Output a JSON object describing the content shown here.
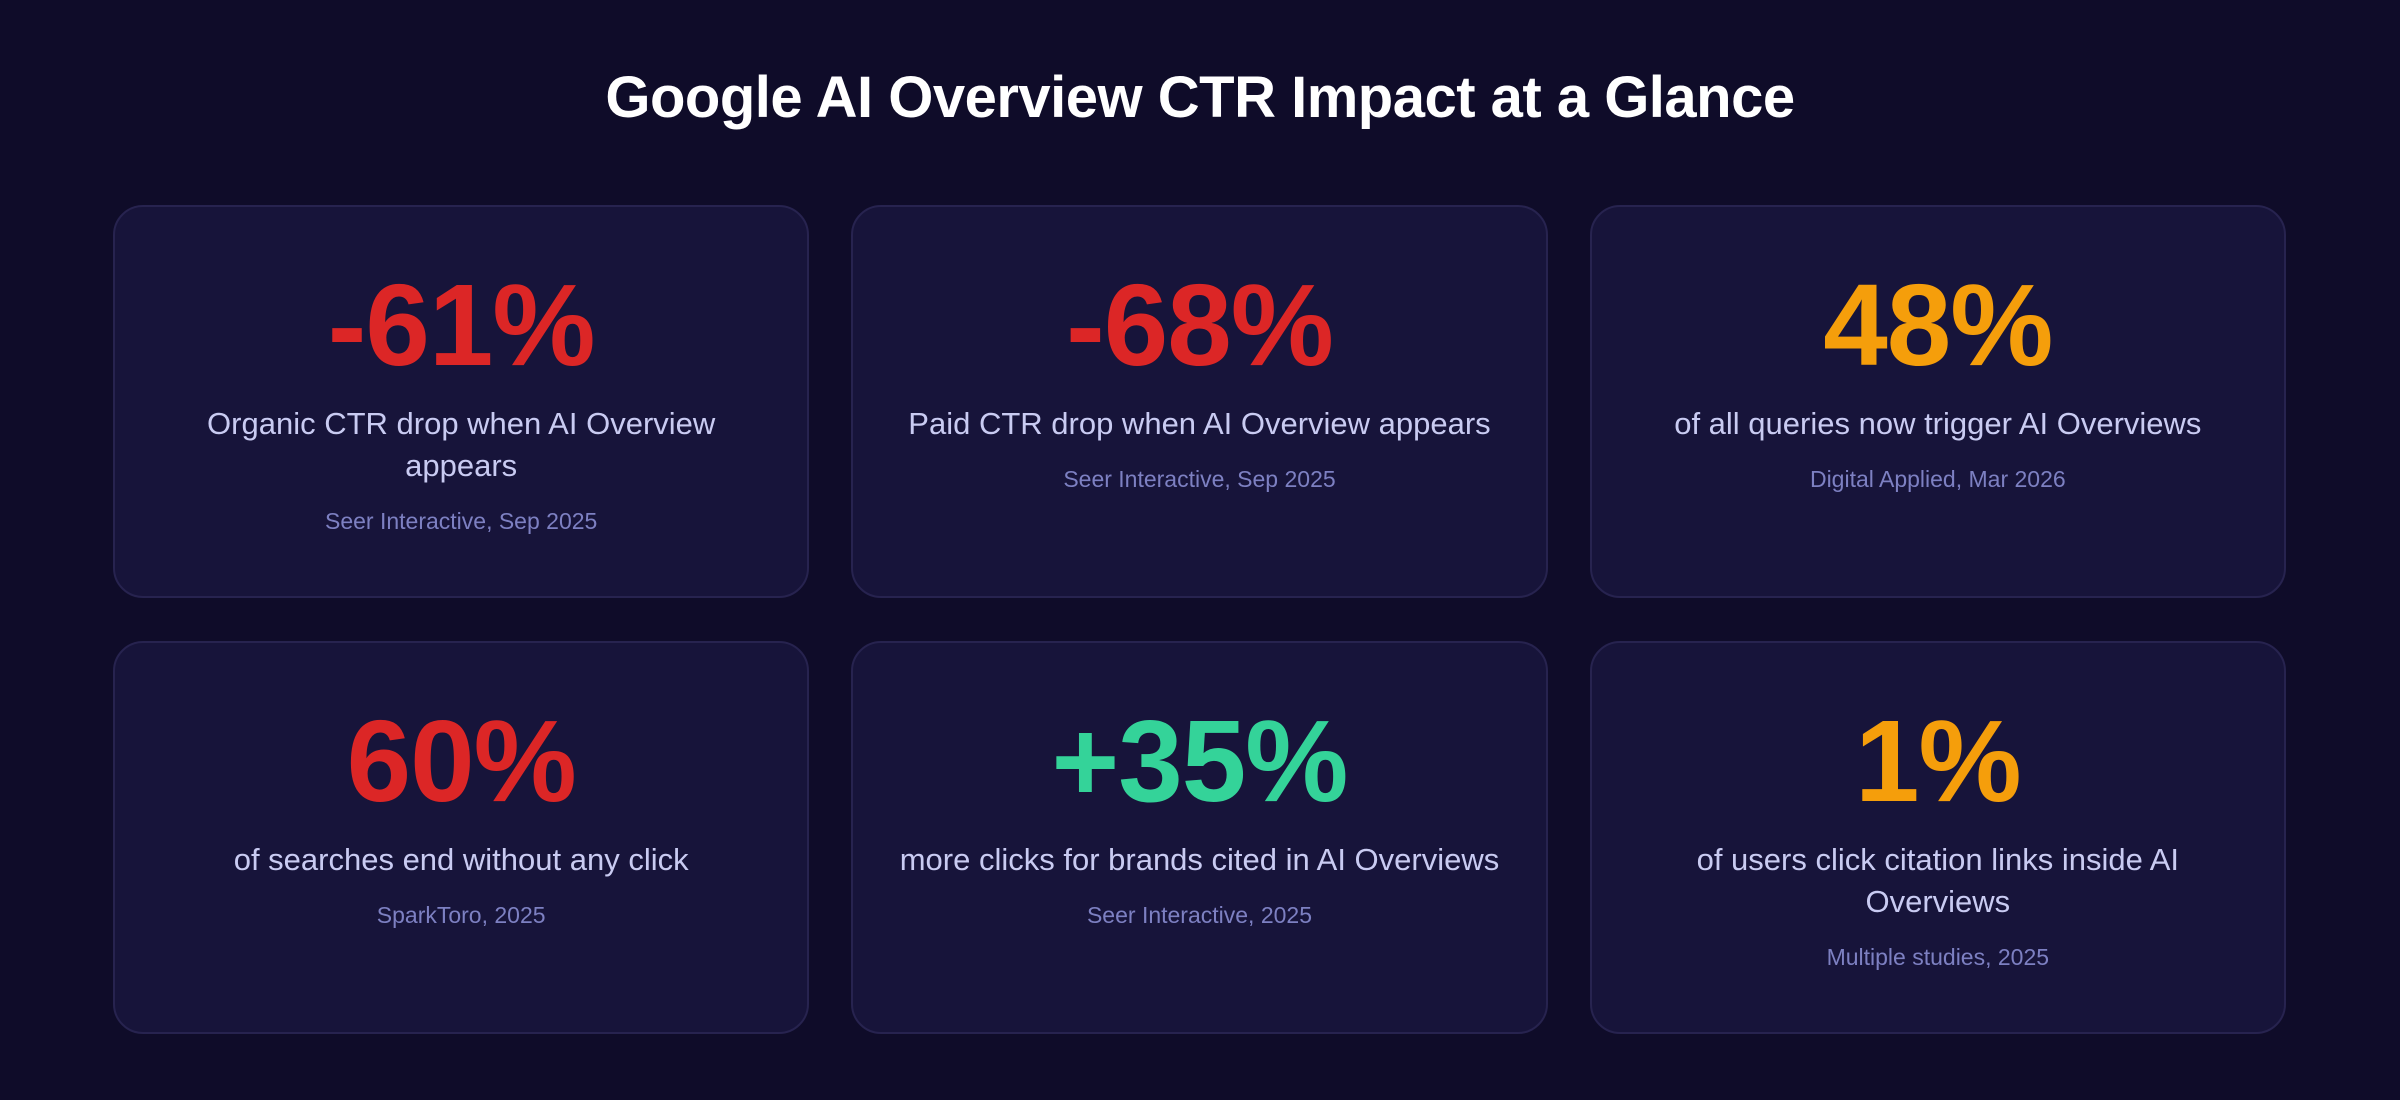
{
  "header": {
    "title": "Google AI Overview CTR Impact at a Glance"
  },
  "cards": [
    {
      "stat": "-61%",
      "color": "#dc2626",
      "label": "Organic CTR drop when AI Overview appears",
      "source": "Seer Interactive, Sep 2025"
    },
    {
      "stat": "-68%",
      "color": "#dc2626",
      "label": "Paid CTR drop when AI Overview appears",
      "source": "Seer Interactive, Sep 2025"
    },
    {
      "stat": "48%",
      "color": "#f59e0b",
      "label": "of all queries now trigger AI Overviews",
      "source": "Digital Applied, Mar 2026"
    },
    {
      "stat": "60%",
      "color": "#dc2626",
      "label": "of searches end without any click",
      "source": "SparkToro, 2025"
    },
    {
      "stat": "+35%",
      "color": "#34d399",
      "label": "more clicks for brands cited in AI Overviews",
      "source": "Seer Interactive, 2025"
    },
    {
      "stat": "1%",
      "color": "#f59e0b",
      "label": "of users click citation links inside AI Overviews",
      "source": "Multiple studies, 2025"
    }
  ]
}
